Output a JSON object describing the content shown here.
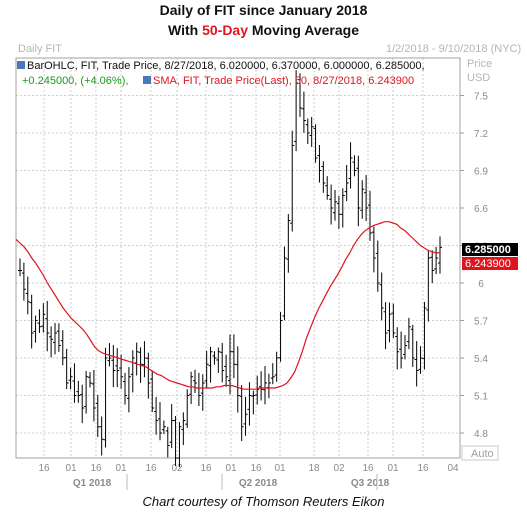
{
  "header": {
    "title_line1": "Daily of FIT since January 2018",
    "title_line2_pre": "With ",
    "title_line2_accent": "50-Day",
    "title_line2_post": " Moving Average",
    "chart_name": "Daily FIT",
    "date_range": "1/2/2018 - 9/10/2018 (NYC)",
    "price_label": "Price",
    "unit_label": "USD"
  },
  "legend": {
    "ohlc_line1": "BarOHLC, FIT, Trade Price, 8/27/2018, 6.020000, 6.370000, 6.000000, 6.285000,",
    "ohlc_change": "+0.245000, (+4.06%),",
    "sma_text": "SMA, FIT, Trade Price(Last),  50, 8/27/2018, 6.243900"
  },
  "price_badges": {
    "last": "6.285000",
    "sma": "6.243900"
  },
  "auto_label": "Auto",
  "credit": "Chart courtesy of Thomson Reuters Eikon",
  "colors": {
    "bars": "#000000",
    "sma": "#e0141e",
    "grid": "#cfcfcf",
    "change": "#1a9a1a",
    "badge_last": "#000000",
    "badge_sma": "#e0141e"
  },
  "chart_data": {
    "type": "line",
    "series": [
      {
        "name": "BarOHLC, FIT, Trade Price",
        "style": "ohlc",
        "color": "#000000",
        "x_start": "2018-01-02",
        "x_end": "2018-08-27",
        "close": [
          6.1,
          5.95,
          5.85,
          5.6,
          5.7,
          5.65,
          5.75,
          5.6,
          5.55,
          5.6,
          5.5,
          5.4,
          5.2,
          5.25,
          5.1,
          5.1,
          5.0,
          5.25,
          5.2,
          5.0,
          4.85,
          4.75,
          5.4,
          5.4,
          5.3,
          5.3,
          5.25,
          5.1,
          5.25,
          5.4,
          5.45,
          5.35,
          5.4,
          5.2,
          5.0,
          4.9,
          4.8,
          4.85,
          4.7,
          4.9,
          4.6,
          4.85,
          4.9,
          5.1,
          5.25,
          5.2,
          5.1,
          5.2,
          5.35,
          5.45,
          5.4,
          5.45,
          5.3,
          5.25,
          5.45,
          5.35,
          5.1,
          4.85,
          4.95,
          5.1,
          5.1,
          5.15,
          5.15,
          5.2,
          5.2,
          5.25,
          5.4,
          5.7,
          6.2,
          6.5,
          7.1,
          7.6,
          7.4,
          7.3,
          7.2,
          7.25,
          7.0,
          6.9,
          6.8,
          6.7,
          6.6,
          6.65,
          6.55,
          6.7,
          6.8,
          7.0,
          6.9,
          6.6,
          6.75,
          6.6,
          6.4,
          6.2,
          6.0,
          5.8,
          5.6,
          5.75,
          5.6,
          5.45,
          5.4,
          5.5,
          5.65,
          5.4,
          5.3,
          5.4,
          5.8,
          6.2,
          6.1,
          6.2,
          6.285
        ]
      },
      {
        "name": "SMA, FIT, Trade Price(Last), 50",
        "style": "line",
        "color": "#e0141e",
        "values": [
          6.35,
          6.32,
          6.29,
          6.25,
          6.2,
          6.16,
          6.11,
          6.06,
          6.0,
          5.95,
          5.9,
          5.85,
          5.8,
          5.76,
          5.72,
          5.69,
          5.66,
          5.63,
          5.59,
          5.54,
          5.49,
          5.46,
          5.44,
          5.43,
          5.42,
          5.41,
          5.4,
          5.39,
          5.38,
          5.37,
          5.36,
          5.35,
          5.34,
          5.33,
          5.31,
          5.29,
          5.27,
          5.26,
          5.24,
          5.22,
          5.21,
          5.2,
          5.19,
          5.18,
          5.17,
          5.17,
          5.16,
          5.16,
          5.16,
          5.16,
          5.16,
          5.17,
          5.17,
          5.18,
          5.18,
          5.18,
          5.17,
          5.16,
          5.15,
          5.15,
          5.15,
          5.15,
          5.16,
          5.16,
          5.16,
          5.16,
          5.16,
          5.17,
          5.18,
          5.2,
          5.24,
          5.29,
          5.37,
          5.46,
          5.56,
          5.64,
          5.72,
          5.79,
          5.85,
          5.91,
          5.97,
          6.02,
          6.07,
          6.13,
          6.19,
          6.24,
          6.3,
          6.35,
          6.39,
          6.42,
          6.44,
          6.46,
          6.47,
          6.48,
          6.49,
          6.49,
          6.48,
          6.47,
          6.44,
          6.42,
          6.39,
          6.36,
          6.33,
          6.3,
          6.28,
          6.26,
          6.25,
          6.24,
          6.2439
        ]
      }
    ],
    "y_ticks": [
      "7.5",
      "7.2",
      "6.9",
      "6.6",
      "6.3",
      "6",
      "5.7",
      "5.4",
      "5.1",
      "4.8"
    ],
    "ylim": [
      4.6,
      7.8
    ],
    "x_ticks": [
      "16",
      "01",
      "16",
      "01",
      "16",
      "02",
      "16",
      "01",
      "16",
      "01",
      "18",
      "02",
      "16",
      "01",
      "16",
      "04"
    ],
    "quarter_labels": [
      "Q1 2018",
      "Q2 2018",
      "Q3 2018"
    ],
    "grid": true,
    "legend_position": "top-left"
  }
}
